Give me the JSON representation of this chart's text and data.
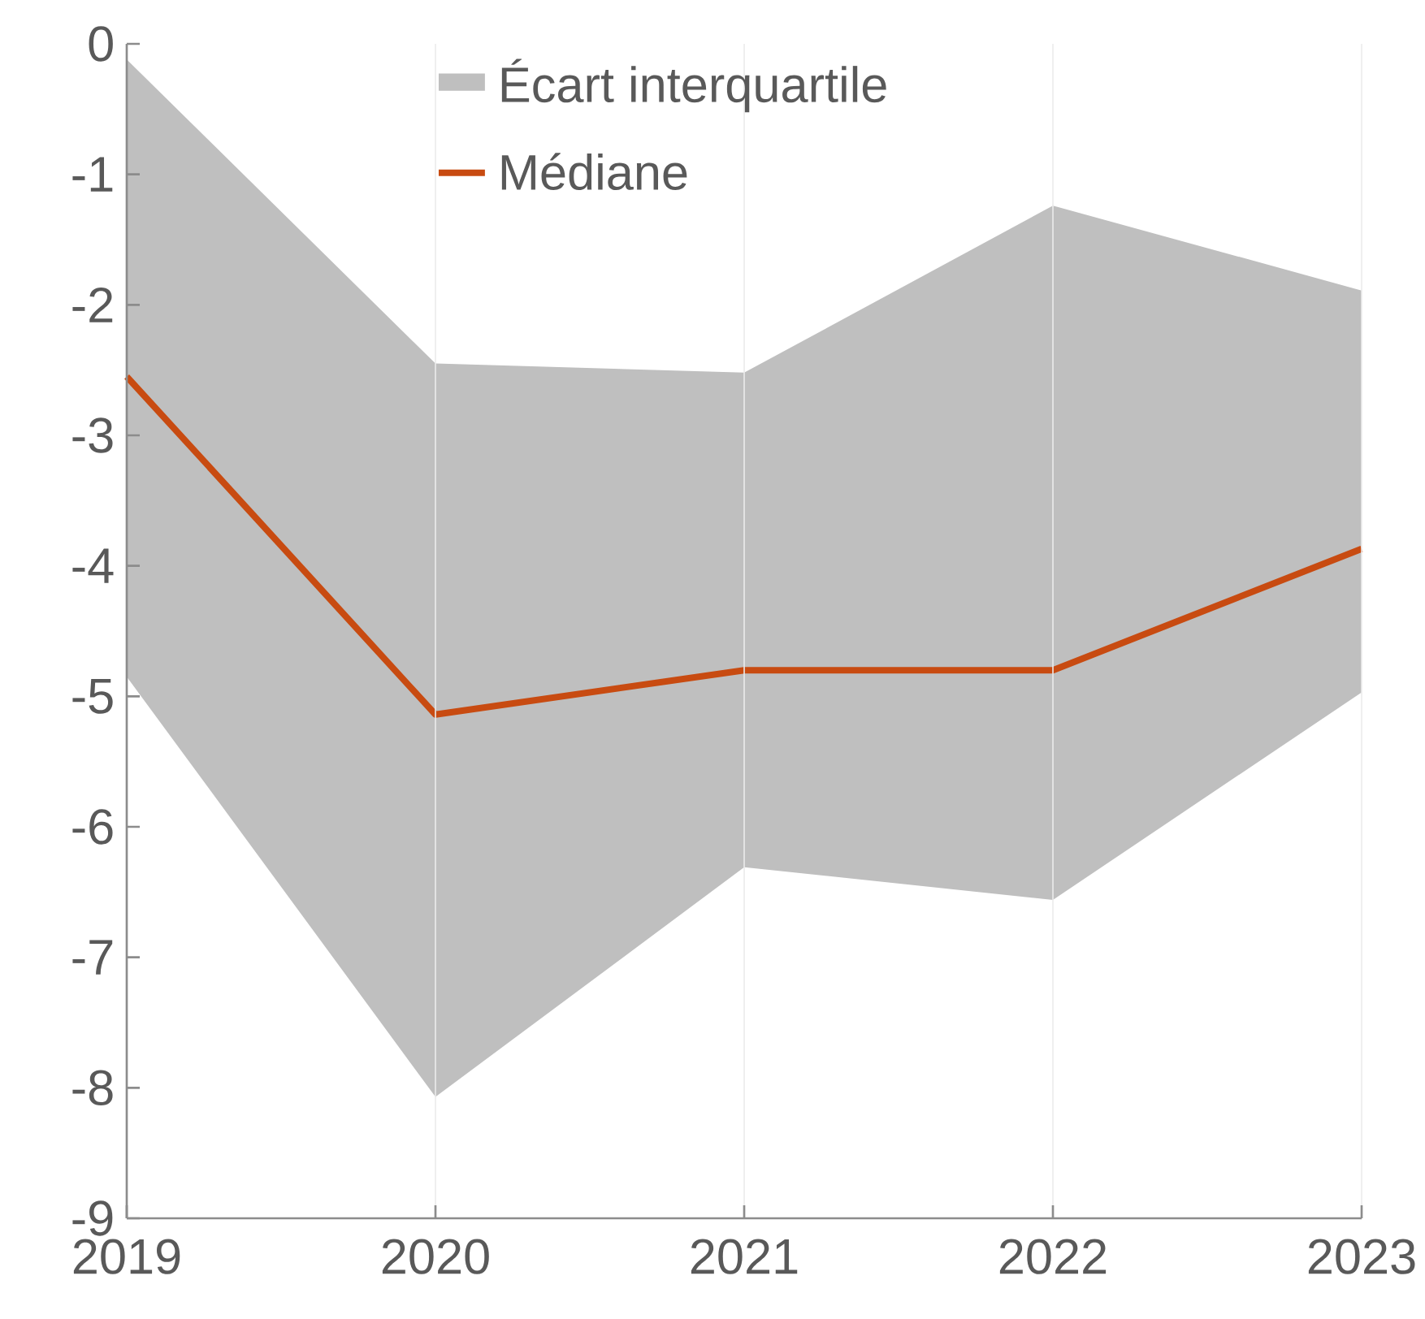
{
  "chart_data": {
    "type": "line",
    "categories": [
      "2019",
      "2020",
      "2021",
      "2022",
      "2023"
    ],
    "series": [
      {
        "name": "Médiane",
        "color": "#c84b11",
        "values": [
          -2.55,
          -5.14,
          -4.8,
          -4.8,
          -3.87
        ],
        "lower": [
          -4.85,
          -8.07,
          -6.31,
          -6.56,
          -4.97
        ],
        "upper": [
          -0.12,
          -2.45,
          -2.52,
          -1.24,
          -1.89
        ]
      }
    ],
    "annotations": [
      "Écart interquartile"
    ],
    "ylim": [
      -9,
      0
    ],
    "yticks": [
      0,
      -1,
      -2,
      -3,
      -4,
      -5,
      -6,
      -7,
      -8,
      -9
    ],
    "grid": "x",
    "legend": "top"
  }
}
